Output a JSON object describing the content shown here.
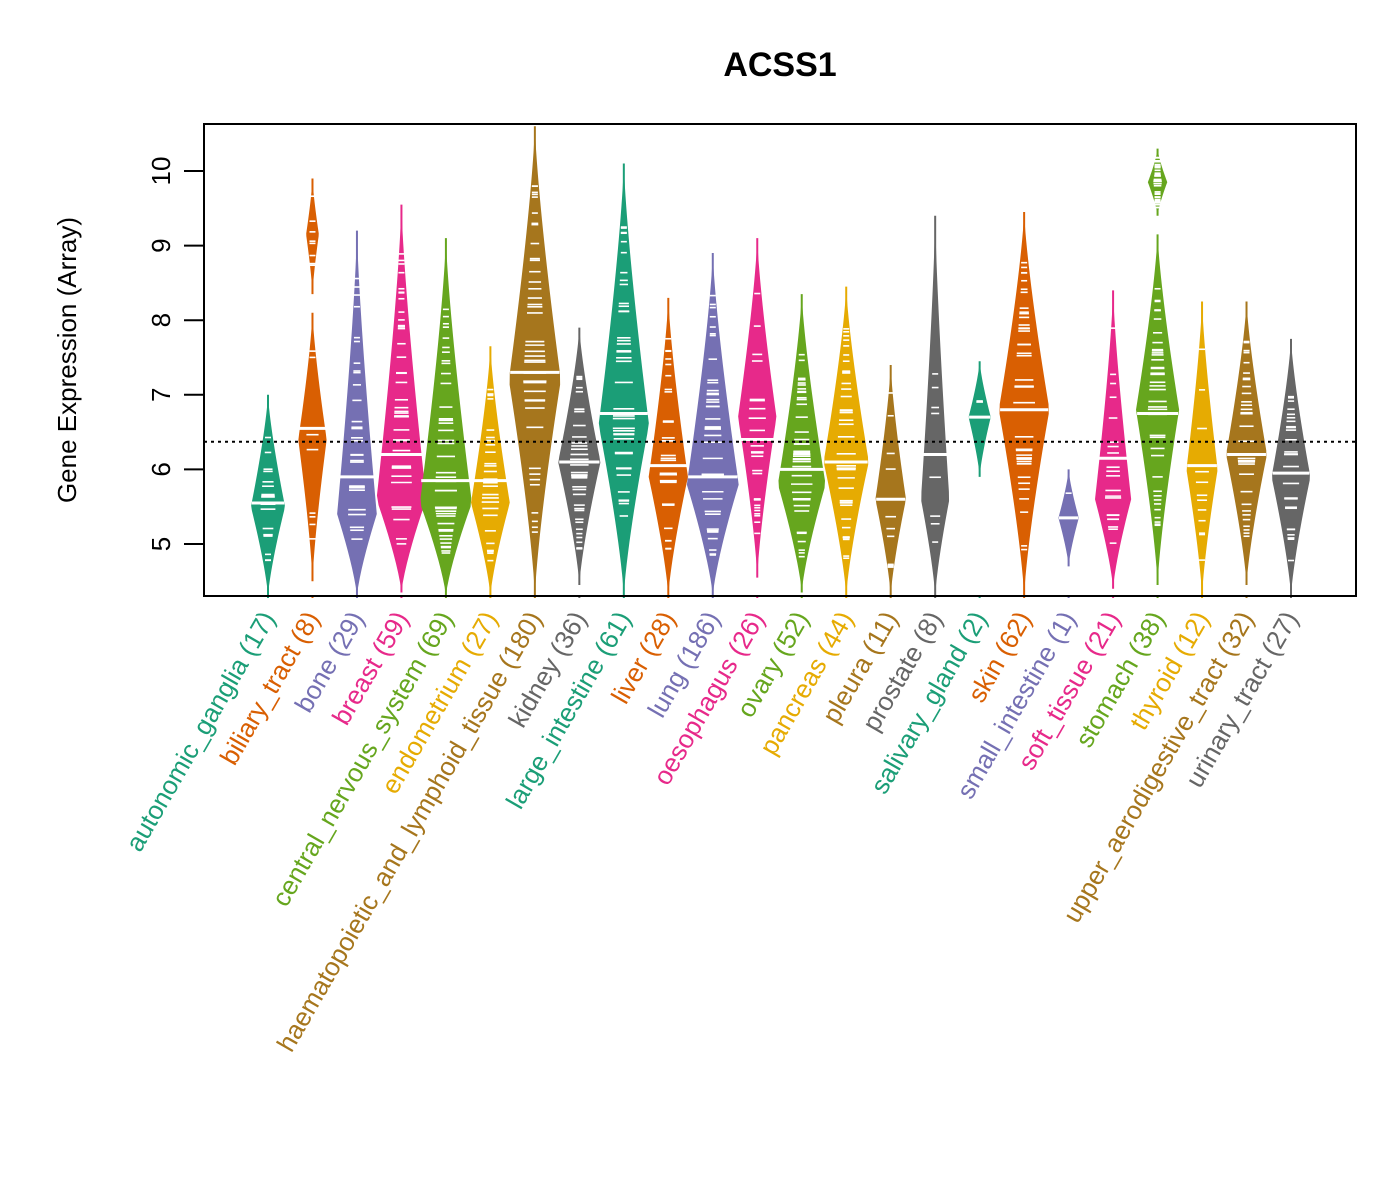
{
  "chart_data": {
    "type": "violin",
    "title": "ACSS1",
    "xlabel": "",
    "ylabel": "Gene Expression (Array)",
    "ylim": [
      4.3,
      10.6
    ],
    "yticks": [
      5,
      6,
      7,
      8,
      9,
      10
    ],
    "reference_line": 6.37,
    "grid": false,
    "legend": "none",
    "categories": [
      {
        "name": "autonomic_ganglia",
        "n": 17,
        "label": "autonomic_ganglia (17)",
        "color": "#1B9E77",
        "min": 4.3,
        "max": 7.0,
        "median": 5.55,
        "segments": [
          [
            4.3,
            7.0,
            5.5
          ]
        ]
      },
      {
        "name": "biliary_tract",
        "n": 8,
        "label": "biliary_tract (8)",
        "color": "#D95F02",
        "min": 4.5,
        "max": 9.9,
        "median": 6.55,
        "segments": [
          [
            4.5,
            8.1,
            6.4
          ],
          [
            8.35,
            9.9,
            9.15
          ]
        ]
      },
      {
        "name": "bone",
        "n": 29,
        "label": "bone (29)",
        "color": "#7570B3",
        "min": 4.3,
        "max": 9.2,
        "median": 5.9,
        "segments": [
          [
            4.3,
            9.2,
            5.4
          ]
        ]
      },
      {
        "name": "breast",
        "n": 59,
        "label": "breast (59)",
        "color": "#E7298A",
        "min": 4.35,
        "max": 9.55,
        "median": 6.2,
        "segments": [
          [
            4.35,
            9.55,
            5.6
          ]
        ]
      },
      {
        "name": "central_nervous_system",
        "n": 69,
        "label": "central_nervous_system (69)",
        "color": "#66A61E",
        "min": 4.3,
        "max": 9.1,
        "median": 5.85,
        "segments": [
          [
            4.3,
            9.1,
            5.55
          ]
        ]
      },
      {
        "name": "endometrium",
        "n": 27,
        "label": "endometrium (27)",
        "color": "#E6AB02",
        "min": 4.3,
        "max": 7.65,
        "median": 5.85,
        "segments": [
          [
            4.3,
            7.65,
            5.55
          ]
        ]
      },
      {
        "name": "haematopoietic_and_lymphoid_tissue",
        "n": 180,
        "label": "haematopoietic_and_lymphoid_tissue (180)",
        "color": "#A6761D",
        "min": 4.3,
        "max": 10.6,
        "median": 7.3,
        "segments": [
          [
            4.3,
            10.6,
            7.2
          ]
        ]
      },
      {
        "name": "kidney",
        "n": 36,
        "label": "kidney (36)",
        "color": "#666666",
        "min": 4.45,
        "max": 7.9,
        "median": 6.1,
        "segments": [
          [
            4.45,
            7.9,
            6.1
          ]
        ]
      },
      {
        "name": "large_intestine",
        "n": 61,
        "label": "large_intestine (61)",
        "color": "#1B9E77",
        "min": 4.3,
        "max": 10.1,
        "median": 6.75,
        "segments": [
          [
            4.3,
            10.1,
            6.6
          ]
        ]
      },
      {
        "name": "liver",
        "n": 28,
        "label": "liver (28)",
        "color": "#D95F02",
        "min": 4.3,
        "max": 8.3,
        "median": 6.05,
        "segments": [
          [
            4.3,
            8.3,
            5.9
          ]
        ]
      },
      {
        "name": "lung",
        "n": 186,
        "label": "lung (186)",
        "color": "#7570B3",
        "min": 4.3,
        "max": 8.9,
        "median": 5.9,
        "segments": [
          [
            4.3,
            8.9,
            5.8
          ]
        ]
      },
      {
        "name": "oesophagus",
        "n": 26,
        "label": "oesophagus (26)",
        "color": "#E7298A",
        "min": 4.55,
        "max": 9.1,
        "median": 6.4,
        "segments": [
          [
            4.55,
            9.1,
            6.7
          ]
        ]
      },
      {
        "name": "ovary",
        "n": 52,
        "label": "ovary (52)",
        "color": "#66A61E",
        "min": 4.35,
        "max": 8.35,
        "median": 6.0,
        "segments": [
          [
            4.35,
            8.35,
            5.8
          ]
        ]
      },
      {
        "name": "pancreas",
        "n": 44,
        "label": "pancreas (44)",
        "color": "#E6AB02",
        "min": 4.3,
        "max": 8.45,
        "median": 6.1,
        "segments": [
          [
            4.3,
            8.45,
            6.1
          ]
        ]
      },
      {
        "name": "pleura",
        "n": 11,
        "label": "pleura (11)",
        "color": "#A6761D",
        "min": 4.3,
        "max": 7.4,
        "median": 5.6,
        "segments": [
          [
            4.3,
            7.4,
            5.6
          ]
        ]
      },
      {
        "name": "prostate",
        "n": 8,
        "label": "prostate (8)",
        "color": "#666666",
        "min": 4.3,
        "max": 9.4,
        "median": 6.2,
        "segments": [
          [
            4.3,
            9.4,
            5.6
          ]
        ]
      },
      {
        "name": "salivary_gland",
        "n": 2,
        "label": "salivary_gland (2)",
        "color": "#1B9E77",
        "min": 5.9,
        "max": 7.45,
        "median": 6.7,
        "segments": [
          [
            5.9,
            7.45,
            6.7
          ]
        ]
      },
      {
        "name": "skin",
        "n": 62,
        "label": "skin (62)",
        "color": "#D95F02",
        "min": 4.3,
        "max": 9.45,
        "median": 6.8,
        "segments": [
          [
            4.3,
            9.45,
            6.8
          ]
        ]
      },
      {
        "name": "small_intestine",
        "n": 1,
        "label": "small_intestine (1)",
        "color": "#7570B3",
        "min": 4.7,
        "max": 6.0,
        "median": 5.35,
        "segments": [
          [
            4.7,
            6.0,
            5.35
          ]
        ]
      },
      {
        "name": "soft_tissue",
        "n": 21,
        "label": "soft_tissue (21)",
        "color": "#E7298A",
        "min": 4.4,
        "max": 8.4,
        "median": 6.15,
        "segments": [
          [
            4.4,
            8.4,
            5.6
          ]
        ]
      },
      {
        "name": "stomach",
        "n": 38,
        "label": "stomach (38)",
        "color": "#66A61E",
        "min": 4.45,
        "max": 10.3,
        "median": 6.75,
        "segments": [
          [
            4.45,
            9.15,
            6.8
          ],
          [
            9.4,
            10.3,
            9.85
          ]
        ]
      },
      {
        "name": "thyroid",
        "n": 12,
        "label": "thyroid (12)",
        "color": "#E6AB02",
        "min": 4.3,
        "max": 8.25,
        "median": 6.05,
        "segments": [
          [
            4.3,
            8.25,
            6.0
          ]
        ]
      },
      {
        "name": "upper_aerodigestive_tract",
        "n": 32,
        "label": "upper_aerodigestive_tract (32)",
        "color": "#A6761D",
        "min": 4.45,
        "max": 8.25,
        "median": 6.2,
        "segments": [
          [
            4.45,
            8.25,
            6.2
          ]
        ]
      },
      {
        "name": "urinary_tract",
        "n": 27,
        "label": "urinary_tract (27)",
        "color": "#666666",
        "min": 4.3,
        "max": 7.75,
        "median": 5.95,
        "segments": [
          [
            4.3,
            7.75,
            5.9
          ]
        ]
      }
    ]
  }
}
